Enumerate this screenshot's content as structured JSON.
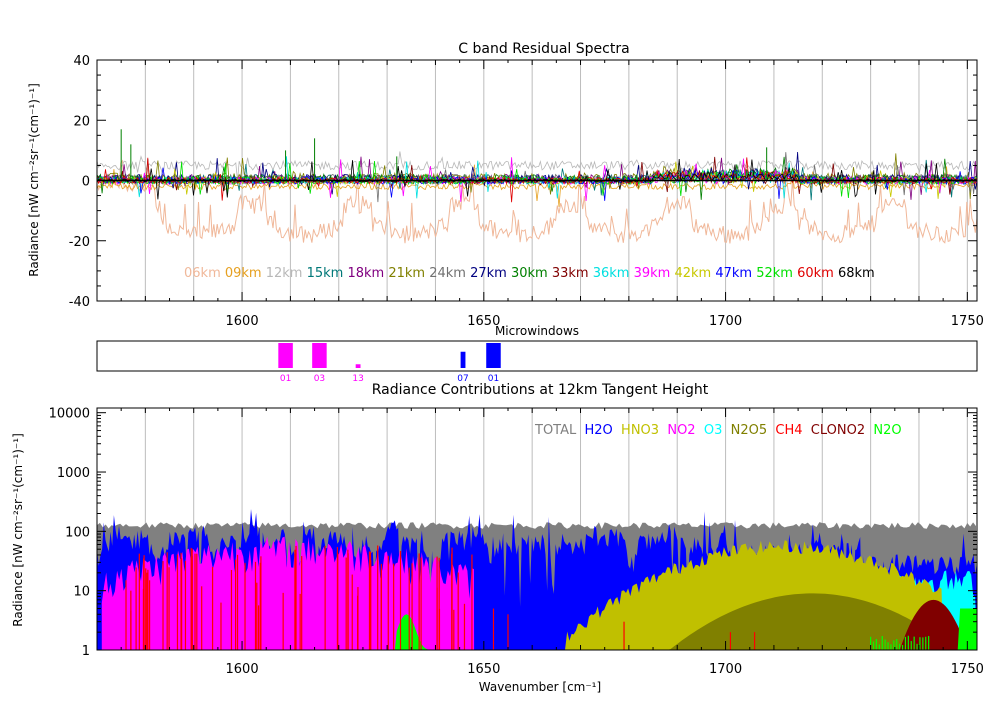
{
  "chart_data": [
    {
      "type": "line",
      "title": "C band Residual Spectra",
      "xlabel": "",
      "ylabel": "Radiance [nW cm⁻²sr⁻¹(cm⁻¹)⁻¹]",
      "xlim": [
        1570,
        1752
      ],
      "ylim": [
        -40,
        40
      ],
      "xticks": [
        1600,
        1650,
        1700,
        1750
      ],
      "yticks": [
        -40,
        -20,
        0,
        20,
        40
      ],
      "grid": true,
      "legend_placement": "bottom-right",
      "series": [
        {
          "name": "06km",
          "color": "#f0b89a",
          "offset": -14,
          "noise": 3,
          "style": "dips"
        },
        {
          "name": "09km",
          "color": "#e6a020",
          "offset": -2,
          "noise": 1,
          "style": "noise"
        },
        {
          "name": "12km",
          "color": "#b8b8b8",
          "offset": 5,
          "noise": 1.5,
          "style": "noise"
        },
        {
          "name": "15km",
          "color": "#007878",
          "offset": 0.5,
          "noise": 1.5,
          "style": "noise"
        },
        {
          "name": "18km",
          "color": "#800080",
          "offset": 0.5,
          "noise": 1.5,
          "style": "noise"
        },
        {
          "name": "21km",
          "color": "#808000",
          "offset": 1,
          "noise": 1.5,
          "style": "noise"
        },
        {
          "name": "24km",
          "color": "#707070",
          "offset": 0.5,
          "noise": 1.5,
          "style": "noise"
        },
        {
          "name": "27km",
          "color": "#000080",
          "offset": 0.5,
          "noise": 1.5,
          "style": "noise"
        },
        {
          "name": "30km",
          "color": "#008000",
          "offset": 0.5,
          "noise": 1.5,
          "style": "noise"
        },
        {
          "name": "33km",
          "color": "#800000",
          "offset": 0,
          "noise": 1.2,
          "style": "noise"
        },
        {
          "name": "36km",
          "color": "#00e0e0",
          "offset": 0,
          "noise": 1.2,
          "style": "noise"
        },
        {
          "name": "39km",
          "color": "#ff00ff",
          "offset": 0,
          "noise": 1.2,
          "style": "noise"
        },
        {
          "name": "42km",
          "color": "#c8c800",
          "offset": 0,
          "noise": 1.2,
          "style": "noise"
        },
        {
          "name": "47km",
          "color": "#0000ff",
          "offset": 0,
          "noise": 1.2,
          "style": "noise"
        },
        {
          "name": "52km",
          "color": "#00e000",
          "offset": 0,
          "noise": 1.2,
          "style": "noise"
        },
        {
          "name": "60km",
          "color": "#e00000",
          "offset": 0,
          "noise": 1,
          "style": "noise"
        },
        {
          "name": "68km",
          "color": "#000000",
          "offset": 0,
          "noise": 0.5,
          "style": "noise"
        }
      ]
    },
    {
      "type": "bar",
      "title": "Microwindows",
      "xlim": [
        1570,
        1752
      ],
      "items": [
        {
          "label": "01",
          "x0": 1607.5,
          "x1": 1610.5,
          "height": 1.0,
          "color": "#ff00ff"
        },
        {
          "label": "03",
          "x0": 1614.5,
          "x1": 1617.5,
          "height": 1.0,
          "color": "#ff00ff"
        },
        {
          "label": "13",
          "x0": 1623.5,
          "x1": 1624.5,
          "height": 0.15,
          "color": "#ff00ff"
        },
        {
          "label": "07",
          "x0": 1645.2,
          "x1": 1646.2,
          "height": 0.65,
          "color": "#0000ff"
        },
        {
          "label": "01",
          "x0": 1650.5,
          "x1": 1653.5,
          "height": 1.0,
          "color": "#0000ff"
        }
      ]
    },
    {
      "type": "area",
      "title": "Radiance Contributions at 12km Tangent Height",
      "xlabel": "Wavenumber [cm⁻¹]",
      "ylabel": "Radiance [nW cm⁻²sr⁻¹(cm⁻¹)⁻¹]",
      "xlim": [
        1570,
        1752
      ],
      "ylim": [
        1,
        12000
      ],
      "yscale": "log",
      "xticks": [
        1600,
        1650,
        1700,
        1750
      ],
      "yticks": [
        1,
        10,
        100,
        1000,
        10000
      ],
      "grid": true,
      "legend_placement": "top-right",
      "series": [
        {
          "name": "TOTAL",
          "color": "#808080"
        },
        {
          "name": "H2O",
          "color": "#0000ff"
        },
        {
          "name": "HNO3",
          "color": "#c0c000"
        },
        {
          "name": "NO2",
          "color": "#ff00ff"
        },
        {
          "name": "O3",
          "color": "#00ffff"
        },
        {
          "name": "N2O5",
          "color": "#808000"
        },
        {
          "name": "CH4",
          "color": "#ff0000"
        },
        {
          "name": "CLONO2",
          "color": "#800000"
        },
        {
          "name": "N2O",
          "color": "#00ff00"
        }
      ]
    }
  ]
}
